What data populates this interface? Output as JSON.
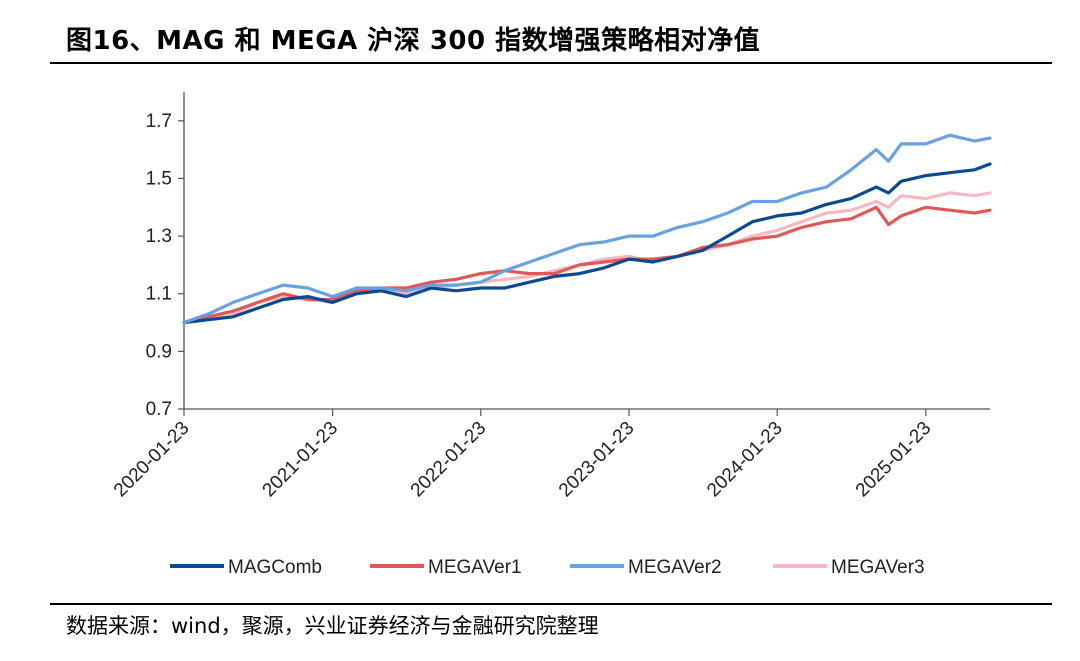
{
  "title": "图16、MAG 和 MEGA 沪深 300 指数增强策略相对净值",
  "source": "数据来源：wind，聚源，兴业证券经济与金融研究院整理",
  "chart_data": {
    "type": "line",
    "title": "图16、MAG 和 MEGA 沪深 300 指数增强策略相对净值",
    "xlabel": "",
    "ylabel": "",
    "ylim": [
      0.7,
      1.8
    ],
    "yticks": [
      "0.7",
      "0.9",
      "1.1",
      "1.3",
      "1.5",
      "1.7"
    ],
    "xticks": [
      "2020-01-23",
      "2021-01-23",
      "2022-01-23",
      "2023-01-23",
      "2024-01-23",
      "2025-01-23"
    ],
    "x_end": "2025-06-30",
    "grid": false,
    "legend_position": "bottom",
    "dates": [
      "2020-01-23",
      "2020-03-23",
      "2020-05-23",
      "2020-07-23",
      "2020-09-23",
      "2020-11-23",
      "2021-01-23",
      "2021-03-23",
      "2021-05-23",
      "2021-07-23",
      "2021-09-23",
      "2021-11-23",
      "2022-01-23",
      "2022-03-23",
      "2022-05-23",
      "2022-07-23",
      "2022-09-23",
      "2022-11-23",
      "2023-01-23",
      "2023-03-23",
      "2023-05-23",
      "2023-07-23",
      "2023-09-23",
      "2023-11-23",
      "2024-01-23",
      "2024-03-23",
      "2024-05-23",
      "2024-07-23",
      "2024-09-23",
      "2024-10-23",
      "2024-11-23",
      "2025-01-23",
      "2025-03-23",
      "2025-05-23",
      "2025-06-30"
    ],
    "series": [
      {
        "name": "MAGComb",
        "color": "#0b4a91",
        "values": [
          1.0,
          1.01,
          1.02,
          1.05,
          1.08,
          1.09,
          1.07,
          1.1,
          1.11,
          1.09,
          1.12,
          1.11,
          1.12,
          1.12,
          1.14,
          1.16,
          1.17,
          1.19,
          1.22,
          1.21,
          1.23,
          1.25,
          1.3,
          1.35,
          1.37,
          1.38,
          1.41,
          1.43,
          1.47,
          1.45,
          1.49,
          1.51,
          1.52,
          1.53,
          1.55
        ]
      },
      {
        "name": "MEGAVer1",
        "color": "#e05858",
        "values": [
          1.0,
          1.02,
          1.04,
          1.07,
          1.1,
          1.08,
          1.08,
          1.11,
          1.12,
          1.12,
          1.14,
          1.15,
          1.17,
          1.18,
          1.17,
          1.17,
          1.2,
          1.21,
          1.22,
          1.22,
          1.23,
          1.26,
          1.27,
          1.29,
          1.3,
          1.33,
          1.35,
          1.36,
          1.4,
          1.34,
          1.37,
          1.4,
          1.39,
          1.38,
          1.39
        ]
      },
      {
        "name": "MEGAVer2",
        "color": "#6aa1e3",
        "values": [
          1.0,
          1.03,
          1.07,
          1.1,
          1.13,
          1.12,
          1.09,
          1.12,
          1.12,
          1.11,
          1.13,
          1.13,
          1.14,
          1.18,
          1.21,
          1.24,
          1.27,
          1.28,
          1.3,
          1.3,
          1.33,
          1.35,
          1.38,
          1.42,
          1.42,
          1.45,
          1.47,
          1.53,
          1.6,
          1.56,
          1.62,
          1.62,
          1.65,
          1.63,
          1.64
        ]
      },
      {
        "name": "MEGAVer3",
        "color": "#f7b8c4",
        "values": [
          1.0,
          1.01,
          1.03,
          1.07,
          1.09,
          1.08,
          1.07,
          1.1,
          1.11,
          1.1,
          1.12,
          1.13,
          1.14,
          1.15,
          1.16,
          1.18,
          1.2,
          1.22,
          1.23,
          1.21,
          1.23,
          1.25,
          1.27,
          1.3,
          1.32,
          1.35,
          1.38,
          1.39,
          1.42,
          1.4,
          1.44,
          1.43,
          1.45,
          1.44,
          1.45
        ]
      }
    ]
  }
}
